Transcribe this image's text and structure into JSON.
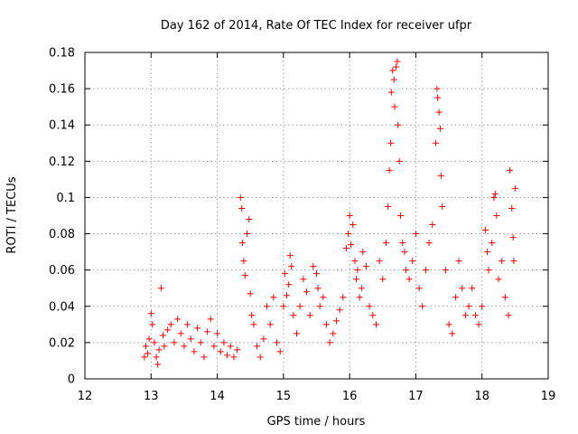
{
  "chart_data": {
    "type": "scatter",
    "title": "Day 162 of 2014, Rate Of TEC Index for receiver ufpr",
    "xlabel": "GPS time / hours",
    "ylabel": "ROTI / TECUs",
    "xlim": [
      12,
      19
    ],
    "ylim": [
      0,
      0.18
    ],
    "xticks": [
      "12",
      "13",
      "14",
      "15",
      "16",
      "17",
      "18",
      "19"
    ],
    "yticks": [
      "0",
      "0.02",
      "0.04",
      "0.06",
      "0.08",
      "0.1",
      "0.12",
      "0.14",
      "0.16",
      "0.18"
    ],
    "grid": true,
    "marker": "+",
    "color": "#ff0000",
    "series": [
      {
        "name": "ROTI",
        "points": [
          [
            12.9,
            0.012
          ],
          [
            12.92,
            0.018
          ],
          [
            12.95,
            0.014
          ],
          [
            12.97,
            0.022
          ],
          [
            13.0,
            0.036
          ],
          [
            13.02,
            0.03
          ],
          [
            13.05,
            0.02
          ],
          [
            13.08,
            0.012
          ],
          [
            13.1,
            0.008
          ],
          [
            13.12,
            0.016
          ],
          [
            13.15,
            0.05
          ],
          [
            13.18,
            0.024
          ],
          [
            13.2,
            0.018
          ],
          [
            13.25,
            0.027
          ],
          [
            13.3,
            0.03
          ],
          [
            13.35,
            0.02
          ],
          [
            13.4,
            0.033
          ],
          [
            13.45,
            0.025
          ],
          [
            13.5,
            0.018
          ],
          [
            13.55,
            0.03
          ],
          [
            13.6,
            0.022
          ],
          [
            13.65,
            0.015
          ],
          [
            13.7,
            0.028
          ],
          [
            13.75,
            0.02
          ],
          [
            13.8,
            0.012
          ],
          [
            13.85,
            0.026
          ],
          [
            13.9,
            0.033
          ],
          [
            13.95,
            0.018
          ],
          [
            14.0,
            0.025
          ],
          [
            14.05,
            0.015
          ],
          [
            14.1,
            0.02
          ],
          [
            14.15,
            0.013
          ],
          [
            14.2,
            0.018
          ],
          [
            14.25,
            0.012
          ],
          [
            14.3,
            0.016
          ],
          [
            14.35,
            0.1
          ],
          [
            14.37,
            0.094
          ],
          [
            14.38,
            0.075
          ],
          [
            14.4,
            0.065
          ],
          [
            14.42,
            0.057
          ],
          [
            14.45,
            0.08
          ],
          [
            14.48,
            0.088
          ],
          [
            14.5,
            0.047
          ],
          [
            14.52,
            0.035
          ],
          [
            14.55,
            0.03
          ],
          [
            14.6,
            0.018
          ],
          [
            14.65,
            0.012
          ],
          [
            14.7,
            0.022
          ],
          [
            14.75,
            0.04
          ],
          [
            14.8,
            0.03
          ],
          [
            14.85,
            0.045
          ],
          [
            14.9,
            0.02
          ],
          [
            14.95,
            0.015
          ],
          [
            15.0,
            0.04
          ],
          [
            15.02,
            0.058
          ],
          [
            15.05,
            0.046
          ],
          [
            15.08,
            0.052
          ],
          [
            15.1,
            0.068
          ],
          [
            15.12,
            0.062
          ],
          [
            15.15,
            0.035
          ],
          [
            15.2,
            0.025
          ],
          [
            15.25,
            0.04
          ],
          [
            15.3,
            0.055
          ],
          [
            15.35,
            0.048
          ],
          [
            15.4,
            0.035
          ],
          [
            15.45,
            0.062
          ],
          [
            15.5,
            0.058
          ],
          [
            15.52,
            0.05
          ],
          [
            15.55,
            0.04
          ],
          [
            15.6,
            0.045
          ],
          [
            15.65,
            0.03
          ],
          [
            15.7,
            0.02
          ],
          [
            15.75,
            0.025
          ],
          [
            15.8,
            0.032
          ],
          [
            15.85,
            0.038
          ],
          [
            15.9,
            0.045
          ],
          [
            15.95,
            0.072
          ],
          [
            15.98,
            0.08
          ],
          [
            16.0,
            0.09
          ],
          [
            16.02,
            0.074
          ],
          [
            16.05,
            0.085
          ],
          [
            16.08,
            0.065
          ],
          [
            16.1,
            0.055
          ],
          [
            16.12,
            0.06
          ],
          [
            16.15,
            0.045
          ],
          [
            16.18,
            0.05
          ],
          [
            16.2,
            0.07
          ],
          [
            16.25,
            0.062
          ],
          [
            16.3,
            0.04
          ],
          [
            16.35,
            0.035
          ],
          [
            16.4,
            0.03
          ],
          [
            16.45,
            0.065
          ],
          [
            16.5,
            0.055
          ],
          [
            16.55,
            0.075
          ],
          [
            16.58,
            0.095
          ],
          [
            16.6,
            0.115
          ],
          [
            16.62,
            0.13
          ],
          [
            16.63,
            0.158
          ],
          [
            16.65,
            0.17
          ],
          [
            16.67,
            0.165
          ],
          [
            16.68,
            0.15
          ],
          [
            16.7,
            0.172
          ],
          [
            16.72,
            0.175
          ],
          [
            16.73,
            0.14
          ],
          [
            16.75,
            0.12
          ],
          [
            16.77,
            0.09
          ],
          [
            16.8,
            0.075
          ],
          [
            16.83,
            0.07
          ],
          [
            16.85,
            0.06
          ],
          [
            16.9,
            0.055
          ],
          [
            16.95,
            0.065
          ],
          [
            17.0,
            0.08
          ],
          [
            17.05,
            0.05
          ],
          [
            17.1,
            0.04
          ],
          [
            17.15,
            0.06
          ],
          [
            17.2,
            0.075
          ],
          [
            17.25,
            0.085
          ],
          [
            17.3,
            0.13
          ],
          [
            17.32,
            0.16
          ],
          [
            17.33,
            0.155
          ],
          [
            17.35,
            0.147
          ],
          [
            17.37,
            0.138
          ],
          [
            17.38,
            0.112
          ],
          [
            17.4,
            0.095
          ],
          [
            17.45,
            0.06
          ],
          [
            17.5,
            0.03
          ],
          [
            17.55,
            0.025
          ],
          [
            17.6,
            0.045
          ],
          [
            17.65,
            0.065
          ],
          [
            17.7,
            0.05
          ],
          [
            17.75,
            0.035
          ],
          [
            17.8,
            0.04
          ],
          [
            17.85,
            0.05
          ],
          [
            17.9,
            0.035
          ],
          [
            17.95,
            0.03
          ],
          [
            18.0,
            0.04
          ],
          [
            18.05,
            0.082
          ],
          [
            18.08,
            0.07
          ],
          [
            18.1,
            0.06
          ],
          [
            18.15,
            0.075
          ],
          [
            18.18,
            0.1
          ],
          [
            18.2,
            0.102
          ],
          [
            18.22,
            0.09
          ],
          [
            18.25,
            0.055
          ],
          [
            18.3,
            0.065
          ],
          [
            18.35,
            0.045
          ],
          [
            18.4,
            0.035
          ],
          [
            18.42,
            0.115
          ],
          [
            18.45,
            0.094
          ],
          [
            18.47,
            0.078
          ],
          [
            18.48,
            0.065
          ],
          [
            18.5,
            0.105
          ]
        ]
      }
    ]
  }
}
